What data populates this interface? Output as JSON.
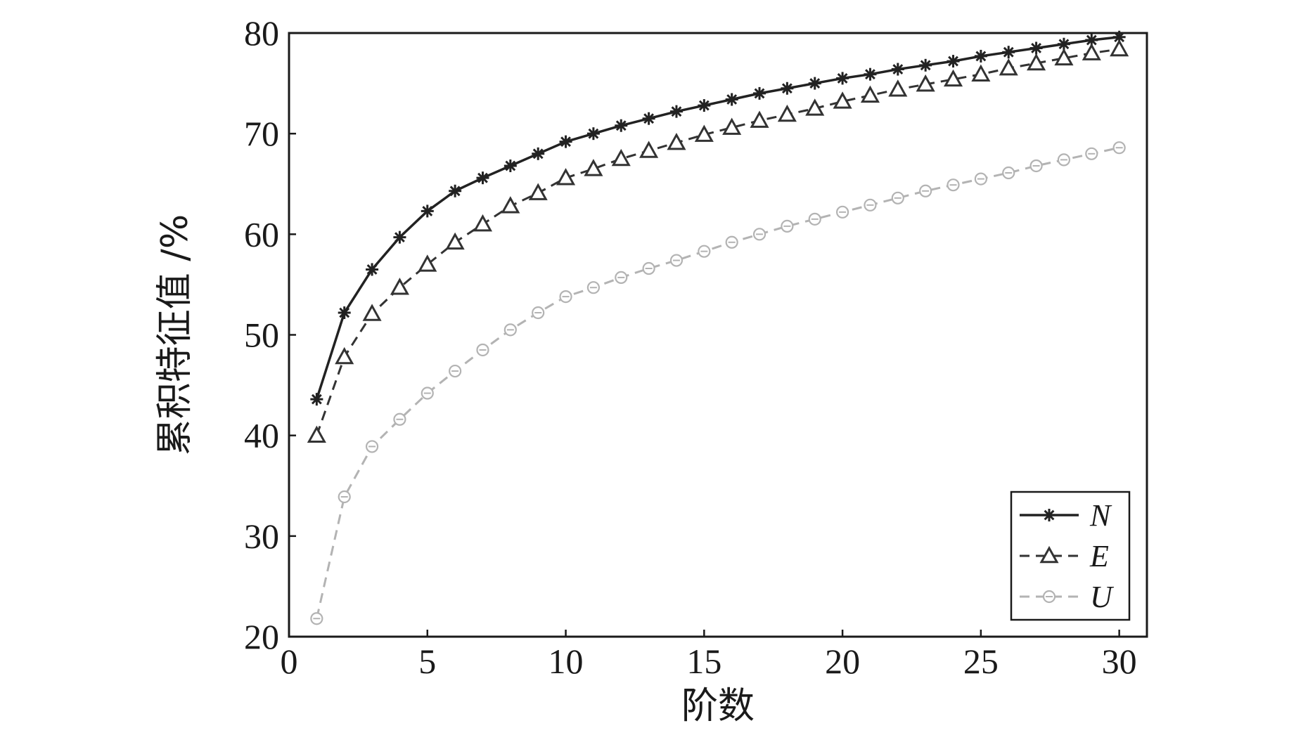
{
  "chart_data": {
    "type": "line",
    "title": "",
    "xlabel": "阶数",
    "ylabel": "累积特征值 /%",
    "xlim": [
      0,
      31
    ],
    "ylim": [
      20,
      80
    ],
    "xticks": [
      0,
      5,
      10,
      15,
      20,
      25,
      30
    ],
    "yticks": [
      20,
      30,
      40,
      50,
      60,
      70,
      80
    ],
    "grid": false,
    "legend_position": "bottom-right",
    "x": [
      1,
      2,
      3,
      4,
      5,
      6,
      7,
      8,
      9,
      10,
      11,
      12,
      13,
      14,
      15,
      16,
      17,
      18,
      19,
      20,
      21,
      22,
      23,
      24,
      25,
      26,
      27,
      28,
      29,
      30
    ],
    "series": [
      {
        "name": "N",
        "color": "#222222",
        "line": "solid",
        "marker": "asterisk",
        "values": [
          43.6,
          52.2,
          56.5,
          59.7,
          62.3,
          64.3,
          65.6,
          66.8,
          68.0,
          69.2,
          70.0,
          70.8,
          71.5,
          72.2,
          72.8,
          73.4,
          74.0,
          74.5,
          75.0,
          75.5,
          75.9,
          76.4,
          76.8,
          77.2,
          77.7,
          78.1,
          78.5,
          78.9,
          79.3,
          79.6
        ]
      },
      {
        "name": "E",
        "color": "#333333",
        "line": "dashed",
        "marker": "triangle",
        "values": [
          40.0,
          47.8,
          52.1,
          54.7,
          57.0,
          59.2,
          61.0,
          62.8,
          64.1,
          65.6,
          66.5,
          67.5,
          68.3,
          69.1,
          69.9,
          70.6,
          71.3,
          71.9,
          72.5,
          73.2,
          73.8,
          74.4,
          74.9,
          75.4,
          75.9,
          76.5,
          77.0,
          77.5,
          78.0,
          78.4
        ]
      },
      {
        "name": "U",
        "color": "#b3b3b3",
        "line": "dashed",
        "marker": "circle",
        "values": [
          21.8,
          33.9,
          38.9,
          41.6,
          44.2,
          46.4,
          48.5,
          50.5,
          52.2,
          53.8,
          54.7,
          55.7,
          56.6,
          57.4,
          58.3,
          59.2,
          60.0,
          60.8,
          61.5,
          62.2,
          62.9,
          63.6,
          64.3,
          64.9,
          65.5,
          66.1,
          66.8,
          67.4,
          68.0,
          68.6
        ]
      }
    ]
  }
}
